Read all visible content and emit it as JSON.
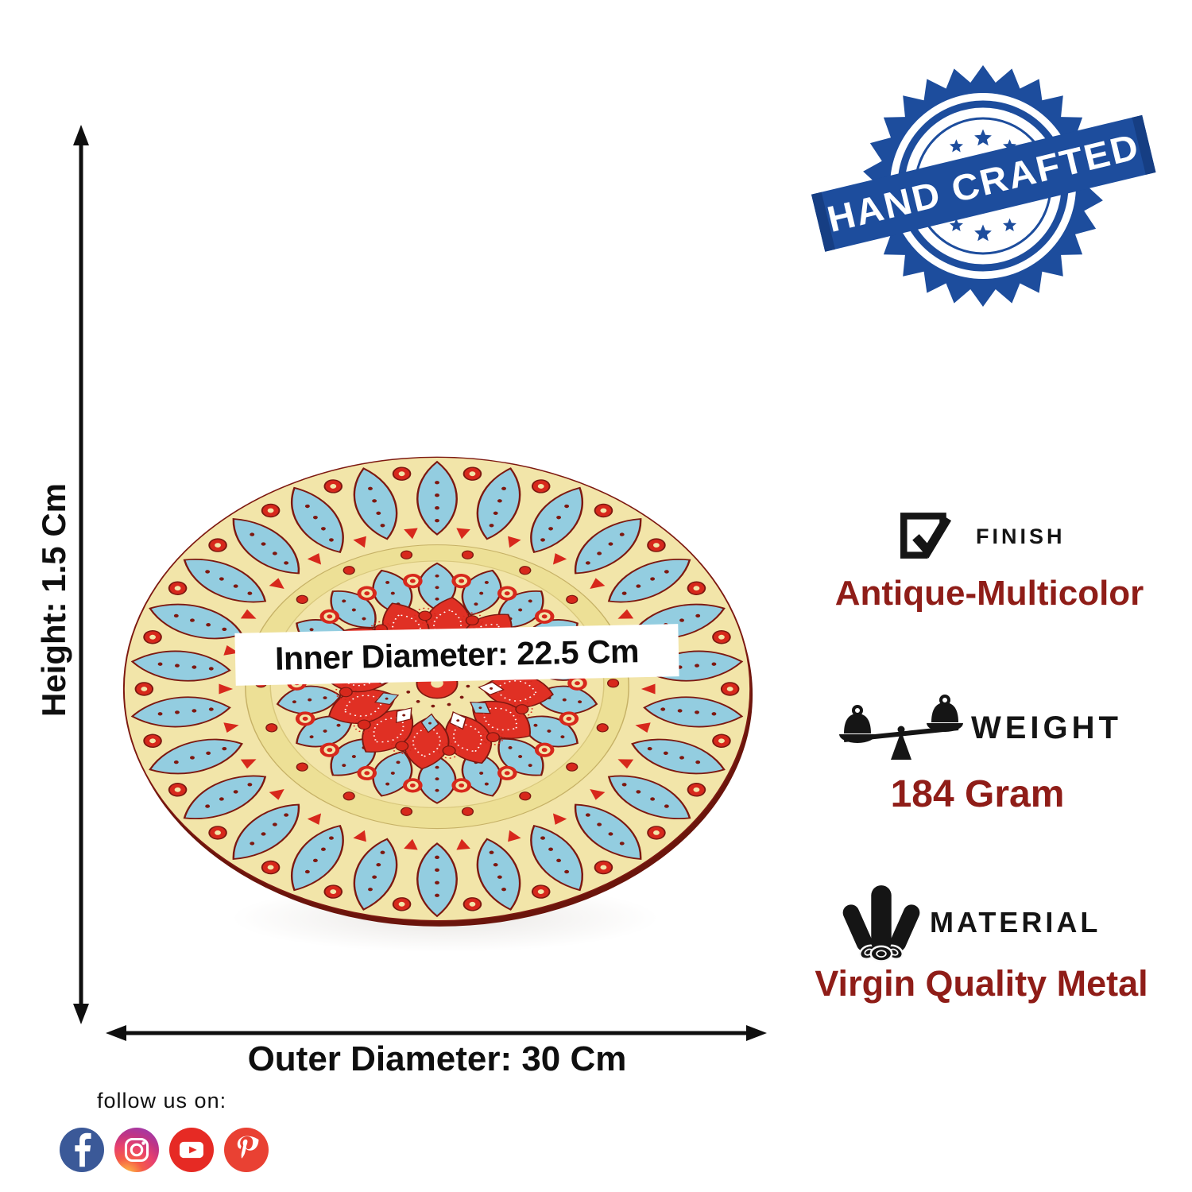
{
  "badge": {
    "label": "HAND CRAFTED",
    "color": "#1d4d9d",
    "fold_color": "#163e83"
  },
  "dimensions": {
    "height_label": "Height: 1.5 Cm",
    "inner_diameter_label": "Inner Diameter: 22.5 Cm",
    "outer_diameter_label": "Outer Diameter: 30 Cm"
  },
  "specs": [
    {
      "label": "FINISH",
      "value": "Antique-Multicolor",
      "icon": "finish-checkbox-icon"
    },
    {
      "label": "WEIGHT",
      "value": "184 Gram",
      "icon": "weight-scale-icon"
    },
    {
      "label": "MATERIAL",
      "value": "Virgin Quality Metal",
      "icon": "material-pipes-icon"
    }
  ],
  "footer": {
    "follow_label": "follow us on:",
    "social": [
      {
        "name": "facebook",
        "color": "#3B5998"
      },
      {
        "name": "instagram",
        "color": "#C13584"
      },
      {
        "name": "youtube",
        "color": "#E62A24"
      },
      {
        "name": "pinterest",
        "color": "#E94133"
      }
    ]
  },
  "plate": {
    "description": "Hand painted antique multicolor mandala metal plate",
    "colors": {
      "cream": "#F2E5A9",
      "lip": "#EDE096",
      "blue": "#93CDE0",
      "red": "#E03024",
      "berry": "#D7281C",
      "maroon": "#7D1810",
      "shadow_rim": "#6B150C"
    }
  },
  "text_colors": {
    "value_maroon": "#8F1D18",
    "label_black": "#151515"
  }
}
